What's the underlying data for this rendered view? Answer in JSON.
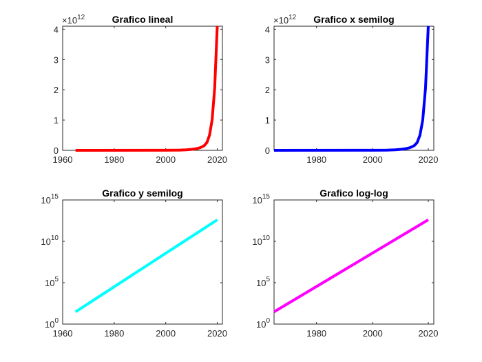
{
  "chart_data": [
    {
      "type": "line",
      "title": "Grafico lineal",
      "xscale": "linear",
      "yscale": "linear",
      "xlim": [
        1960,
        2022
      ],
      "ylim": [
        0,
        4.1
      ],
      "xticks": [
        1960,
        1980,
        2000,
        2020
      ],
      "xtick_labels": [
        "1960",
        "1980",
        "2000",
        "2020"
      ],
      "yticks": [
        0,
        1,
        2,
        3,
        4
      ],
      "ytick_labels": [
        "0",
        "1",
        "2",
        "3",
        "4"
      ],
      "y_exponent_label": "×10",
      "y_exponent": "12",
      "grid": false,
      "color": "#ff0000",
      "series": [
        {
          "x": [
            1965,
            2000,
            2005,
            2008,
            2010,
            2011,
            2012,
            2013,
            2014,
            2015,
            2016,
            2017,
            2018,
            2019,
            2020
          ],
          "y": [
            0,
            0.002,
            0.007,
            0.017,
            0.031,
            0.042,
            0.057,
            0.078,
            0.11,
            0.16,
            0.26,
            0.5,
            1.0,
            2.05,
            4.1
          ]
        }
      ]
    },
    {
      "type": "line",
      "title": "Grafico x semilog",
      "xscale": "log",
      "yscale": "linear",
      "xlim": [
        1965,
        2022
      ],
      "ylim": [
        0,
        4.1
      ],
      "xticks": [
        1980,
        2000,
        2020
      ],
      "xtick_labels": [
        "1980",
        "2000",
        "2020"
      ],
      "yticks": [
        0,
        1,
        2,
        3,
        4
      ],
      "ytick_labels": [
        "0",
        "1",
        "2",
        "3",
        "4"
      ],
      "y_exponent_label": "×10",
      "y_exponent": "12",
      "grid": false,
      "color": "#0000ff",
      "series": [
        {
          "x": [
            1965,
            2000,
            2005,
            2008,
            2010,
            2011,
            2012,
            2013,
            2014,
            2015,
            2016,
            2017,
            2018,
            2019,
            2020
          ],
          "y": [
            0,
            0.002,
            0.007,
            0.017,
            0.031,
            0.042,
            0.057,
            0.078,
            0.11,
            0.16,
            0.26,
            0.5,
            1.0,
            2.05,
            4.1
          ]
        }
      ]
    },
    {
      "type": "line",
      "title": "Grafico y semilog",
      "xscale": "linear",
      "yscale": "log",
      "xlim": [
        1960,
        2022
      ],
      "ylim": [
        1,
        1000000000000000.0
      ],
      "xticks": [
        1960,
        1980,
        2000,
        2020
      ],
      "xtick_labels": [
        "1960",
        "1980",
        "2000",
        "2020"
      ],
      "yticks": [
        1,
        100000,
        10000000000,
        1000000000000000
      ],
      "ytick_base": [
        "10",
        "10",
        "10",
        "10"
      ],
      "ytick_exp": [
        "0",
        "5",
        "10",
        "15"
      ],
      "grid": false,
      "color": "#00ffff",
      "series": [
        {
          "x": [
            1965,
            2020
          ],
          "y": [
            30,
            4000000000000
          ]
        }
      ]
    },
    {
      "type": "line",
      "title": "Grafico log-log",
      "xscale": "log",
      "yscale": "log",
      "xlim": [
        1965,
        2022
      ],
      "ylim": [
        1,
        1000000000000000.0
      ],
      "xticks": [
        1980,
        2000,
        2020
      ],
      "xtick_labels": [
        "1980",
        "2000",
        "2020"
      ],
      "yticks": [
        1,
        100000,
        10000000000,
        1000000000000000
      ],
      "ytick_base": [
        "10",
        "10",
        "10",
        "10"
      ],
      "ytick_exp": [
        "0",
        "5",
        "10",
        "15"
      ],
      "grid": false,
      "color": "#ff00ff",
      "series": [
        {
          "x": [
            1965,
            2020
          ],
          "y": [
            30,
            4000000000000
          ]
        }
      ]
    }
  ]
}
